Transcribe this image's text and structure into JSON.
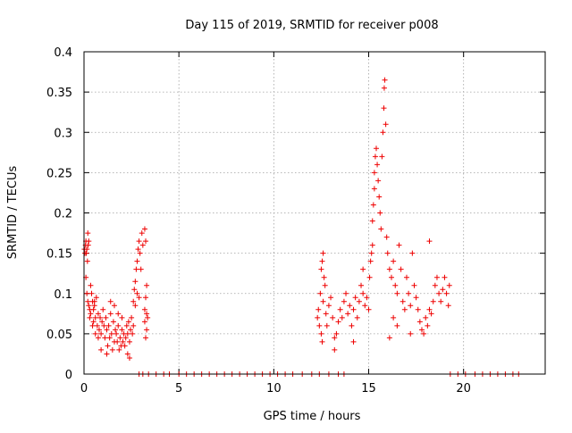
{
  "chart_data": {
    "type": "scatter",
    "title": "Day 115 of 2019, SRMTID for receiver p008",
    "xlabel": "GPS time / hours",
    "ylabel": "SRMTID / TECUs",
    "xlim": [
      0,
      24.3
    ],
    "ylim": [
      0,
      0.4
    ],
    "xticks": [
      0,
      5,
      10,
      15,
      20
    ],
    "xtick_labels": [
      "0",
      "5",
      "10",
      "15",
      "20"
    ],
    "yticks": [
      0,
      0.05,
      0.1,
      0.15,
      0.2,
      0.25,
      0.3,
      0.35,
      0.4
    ],
    "ytick_labels": [
      "0",
      "0.05",
      "0.1",
      "0.15",
      "0.2",
      "0.25",
      "0.3",
      "0.35",
      "0.4"
    ],
    "grid": true,
    "marker": "plus",
    "color": "#ee0000",
    "series": [
      {
        "name": "SRMTID p008",
        "points": [
          [
            0.02,
            0.155
          ],
          [
            0.05,
            0.15
          ],
          [
            0.08,
            0.16
          ],
          [
            0.1,
            0.165
          ],
          [
            0.12,
            0.15
          ],
          [
            0.15,
            0.155
          ],
          [
            0.18,
            0.14
          ],
          [
            0.2,
            0.175
          ],
          [
            0.22,
            0.16
          ],
          [
            0.25,
            0.165
          ],
          [
            0.1,
            0.12
          ],
          [
            0.15,
            0.1
          ],
          [
            0.2,
            0.09
          ],
          [
            0.25,
            0.085
          ],
          [
            0.3,
            0.08
          ],
          [
            0.3,
            0.07
          ],
          [
            0.35,
            0.075
          ],
          [
            0.4,
            0.1
          ],
          [
            0.45,
            0.09
          ],
          [
            0.5,
            0.08
          ],
          [
            0.5,
            0.065
          ],
          [
            0.55,
            0.085
          ],
          [
            0.6,
            0.07
          ],
          [
            0.65,
            0.095
          ],
          [
            0.7,
            0.06
          ],
          [
            0.75,
            0.075
          ],
          [
            0.8,
            0.055
          ],
          [
            0.85,
            0.07
          ],
          [
            0.9,
            0.05
          ],
          [
            0.95,
            0.065
          ],
          [
            1.0,
            0.08
          ],
          [
            1.05,
            0.06
          ],
          [
            1.1,
            0.045
          ],
          [
            1.15,
            0.07
          ],
          [
            1.2,
            0.055
          ],
          [
            1.25,
            0.035
          ],
          [
            1.3,
            0.06
          ],
          [
            1.35,
            0.045
          ],
          [
            1.4,
            0.075
          ],
          [
            1.45,
            0.05
          ],
          [
            1.5,
            0.03
          ],
          [
            1.55,
            0.065
          ],
          [
            1.6,
            0.04
          ],
          [
            1.65,
            0.055
          ],
          [
            1.7,
            0.05
          ],
          [
            1.75,
            0.04
          ],
          [
            1.8,
            0.06
          ],
          [
            1.85,
            0.03
          ],
          [
            1.9,
            0.045
          ],
          [
            1.95,
            0.035
          ],
          [
            2.0,
            0.055
          ],
          [
            2.05,
            0.04
          ],
          [
            2.1,
            0.05
          ],
          [
            2.15,
            0.035
          ],
          [
            2.2,
            0.045
          ],
          [
            2.25,
            0.06
          ],
          [
            2.3,
            0.05
          ],
          [
            2.35,
            0.065
          ],
          [
            2.4,
            0.04
          ],
          [
            2.45,
            0.055
          ],
          [
            2.5,
            0.07
          ],
          [
            2.55,
            0.05
          ],
          [
            2.6,
            0.06
          ],
          [
            2.3,
            0.025
          ],
          [
            2.4,
            0.02
          ],
          [
            1.2,
            0.025
          ],
          [
            0.9,
            0.03
          ],
          [
            0.75,
            0.045
          ],
          [
            0.6,
            0.05
          ],
          [
            0.45,
            0.06
          ],
          [
            2.6,
            0.09
          ],
          [
            2.65,
            0.105
          ],
          [
            2.7,
            0.115
          ],
          [
            2.75,
            0.13
          ],
          [
            2.8,
            0.14
          ],
          [
            2.85,
            0.155
          ],
          [
            2.9,
            0.165
          ],
          [
            2.95,
            0.15
          ],
          [
            3.0,
            0.13
          ],
          [
            2.7,
            0.085
          ],
          [
            2.8,
            0.1
          ],
          [
            2.9,
            0.095
          ],
          [
            3.05,
            0.175
          ],
          [
            3.1,
            0.16
          ],
          [
            3.2,
            0.18
          ],
          [
            3.25,
            0.165
          ],
          [
            3.3,
            0.11
          ],
          [
            3.25,
            0.095
          ],
          [
            3.2,
            0.08
          ],
          [
            3.3,
            0.075
          ],
          [
            3.2,
            0.065
          ],
          [
            3.3,
            0.055
          ],
          [
            3.25,
            0.045
          ],
          [
            3.35,
            0.07
          ],
          [
            1.4,
            0.09
          ],
          [
            1.6,
            0.085
          ],
          [
            0.35,
            0.11
          ],
          [
            0.55,
            0.09
          ],
          [
            1.8,
            0.075
          ],
          [
            2.0,
            0.07
          ],
          [
            2.9,
            0.0
          ],
          [
            3.1,
            0.0
          ],
          [
            3.4,
            0.0
          ],
          [
            3.8,
            0.0
          ],
          [
            4.2,
            0.0
          ],
          [
            4.5,
            0.0
          ],
          [
            5.0,
            0.0
          ],
          [
            5.4,
            0.0
          ],
          [
            5.8,
            0.0
          ],
          [
            6.2,
            0.0
          ],
          [
            6.6,
            0.0
          ],
          [
            7.0,
            0.0
          ],
          [
            7.4,
            0.0
          ],
          [
            7.8,
            0.0
          ],
          [
            8.2,
            0.0
          ],
          [
            8.6,
            0.0
          ],
          [
            9.0,
            0.0
          ],
          [
            9.4,
            0.0
          ],
          [
            9.8,
            0.0
          ],
          [
            10.2,
            0.0
          ],
          [
            10.6,
            0.0
          ],
          [
            11.0,
            0.0
          ],
          [
            11.5,
            0.0
          ],
          [
            12.0,
            0.0
          ],
          [
            12.4,
            0.0
          ],
          [
            12.9,
            0.0
          ],
          [
            13.4,
            0.0
          ],
          [
            13.7,
            0.0
          ],
          [
            12.3,
            0.07
          ],
          [
            12.35,
            0.08
          ],
          [
            12.4,
            0.06
          ],
          [
            12.45,
            0.1
          ],
          [
            12.5,
            0.13
          ],
          [
            12.55,
            0.14
          ],
          [
            12.6,
            0.15
          ],
          [
            12.5,
            0.05
          ],
          [
            12.55,
            0.04
          ],
          [
            12.6,
            0.09
          ],
          [
            12.65,
            0.12
          ],
          [
            12.7,
            0.11
          ],
          [
            12.75,
            0.075
          ],
          [
            12.8,
            0.06
          ],
          [
            12.9,
            0.085
          ],
          [
            13.0,
            0.095
          ],
          [
            13.1,
            0.07
          ],
          [
            13.2,
            0.045
          ],
          [
            13.3,
            0.05
          ],
          [
            13.4,
            0.065
          ],
          [
            13.5,
            0.08
          ],
          [
            13.6,
            0.07
          ],
          [
            13.7,
            0.09
          ],
          [
            13.8,
            0.1
          ],
          [
            13.9,
            0.075
          ],
          [
            14.0,
            0.085
          ],
          [
            14.1,
            0.06
          ],
          [
            14.2,
            0.08
          ],
          [
            14.3,
            0.095
          ],
          [
            14.4,
            0.07
          ],
          [
            14.5,
            0.09
          ],
          [
            14.6,
            0.11
          ],
          [
            14.7,
            0.1
          ],
          [
            14.8,
            0.085
          ],
          [
            14.9,
            0.095
          ],
          [
            15.0,
            0.08
          ],
          [
            15.05,
            0.12
          ],
          [
            15.1,
            0.14
          ],
          [
            15.15,
            0.15
          ],
          [
            15.2,
            0.16
          ],
          [
            15.2,
            0.19
          ],
          [
            15.25,
            0.21
          ],
          [
            15.3,
            0.23
          ],
          [
            15.3,
            0.25
          ],
          [
            15.35,
            0.27
          ],
          [
            15.4,
            0.28
          ],
          [
            15.45,
            0.26
          ],
          [
            15.5,
            0.24
          ],
          [
            15.55,
            0.22
          ],
          [
            15.6,
            0.2
          ],
          [
            15.65,
            0.18
          ],
          [
            15.7,
            0.27
          ],
          [
            15.75,
            0.3
          ],
          [
            15.8,
            0.33
          ],
          [
            15.82,
            0.355
          ],
          [
            15.85,
            0.365
          ],
          [
            15.9,
            0.31
          ],
          [
            15.95,
            0.17
          ],
          [
            16.0,
            0.15
          ],
          [
            16.1,
            0.13
          ],
          [
            16.2,
            0.12
          ],
          [
            16.3,
            0.14
          ],
          [
            16.4,
            0.11
          ],
          [
            16.5,
            0.1
          ],
          [
            16.6,
            0.16
          ],
          [
            16.7,
            0.13
          ],
          [
            16.8,
            0.09
          ],
          [
            16.9,
            0.08
          ],
          [
            17.0,
            0.12
          ],
          [
            17.1,
            0.1
          ],
          [
            17.2,
            0.085
          ],
          [
            17.3,
            0.15
          ],
          [
            17.4,
            0.11
          ],
          [
            17.5,
            0.095
          ],
          [
            17.6,
            0.08
          ],
          [
            17.7,
            0.065
          ],
          [
            17.8,
            0.055
          ],
          [
            17.9,
            0.05
          ],
          [
            18.0,
            0.07
          ],
          [
            18.1,
            0.06
          ],
          [
            18.2,
            0.08
          ],
          [
            18.3,
            0.075
          ],
          [
            18.4,
            0.09
          ],
          [
            18.5,
            0.11
          ],
          [
            18.6,
            0.12
          ],
          [
            18.7,
            0.1
          ],
          [
            18.8,
            0.09
          ],
          [
            18.9,
            0.105
          ],
          [
            19.0,
            0.12
          ],
          [
            19.1,
            0.1
          ],
          [
            19.2,
            0.085
          ],
          [
            19.25,
            0.11
          ],
          [
            16.3,
            0.07
          ],
          [
            16.5,
            0.06
          ],
          [
            17.2,
            0.05
          ],
          [
            18.2,
            0.165
          ],
          [
            16.1,
            0.045
          ],
          [
            14.7,
            0.13
          ],
          [
            14.2,
            0.04
          ],
          [
            13.2,
            0.03
          ],
          [
            19.3,
            0.0
          ],
          [
            19.7,
            0.0
          ],
          [
            20.1,
            0.0
          ],
          [
            20.6,
            0.0
          ],
          [
            21.0,
            0.0
          ],
          [
            21.4,
            0.0
          ],
          [
            21.8,
            0.0
          ],
          [
            22.2,
            0.0
          ],
          [
            22.6,
            0.0
          ],
          [
            22.9,
            0.0
          ]
        ]
      }
    ]
  }
}
